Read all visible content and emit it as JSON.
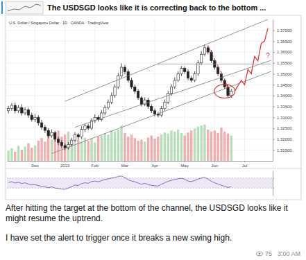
{
  "post": {
    "header": "The USDSGD looks like it is correcting back to the bottom ...",
    "caption": [
      "After hitting the target at the bottom of the channel, the USDSGD looks like it might resume the uptrend.",
      "I have set the alert to trigger once it breaks a new swing high."
    ],
    "views": 75,
    "time": "3:00 AM"
  },
  "chart_data": [
    {
      "type": "candlestick",
      "title": "U.S. Dollar / Singapore Dollar · 1D · OANDA · TradingView",
      "categories": [
        null,
        null,
        null,
        null,
        null,
        null,
        null,
        null,
        "Dec",
        null,
        null,
        null,
        null,
        null,
        null,
        null,
        null,
        "2023",
        null,
        null,
        null,
        null,
        null,
        null,
        null,
        null,
        "Feb",
        null,
        null,
        null,
        null,
        null,
        null,
        null,
        null,
        "Mar",
        null,
        null,
        null,
        null,
        null,
        null,
        null,
        null,
        "Apr",
        null,
        null,
        null,
        null,
        null,
        null,
        null,
        null,
        "May",
        null,
        null,
        null,
        null,
        null,
        null,
        null,
        null,
        "Jun",
        null,
        null,
        null,
        null,
        null,
        null,
        null,
        null,
        "Jul",
        null,
        null,
        null,
        null,
        null,
        null,
        null,
        null
      ],
      "series": [
        {
          "type": "candlestick",
          "open": [
            1.333,
            1.334,
            1.3355,
            1.333,
            1.3345,
            1.332,
            1.3335,
            1.331,
            1.329,
            1.33,
            1.3275,
            1.3255,
            1.324,
            1.3215,
            1.323,
            1.32,
            1.3185,
            1.317,
            1.316,
            1.3175,
            1.3195,
            1.322,
            1.321,
            1.3245,
            1.326,
            1.325,
            1.3285,
            1.33,
            1.329,
            1.332,
            1.3345,
            1.337,
            1.34,
            1.344,
            1.349,
            1.353,
            1.351,
            1.347,
            1.344,
            1.342,
            1.339,
            1.336,
            1.338,
            1.335,
            1.333,
            1.3315,
            1.331,
            1.334,
            1.337,
            1.341,
            1.344,
            1.347,
            1.35,
            1.3525,
            1.351,
            1.348,
            1.347,
            1.35,
            1.355,
            1.359,
            1.362,
            1.36,
            1.356,
            1.353,
            1.35,
            1.347,
            1.344,
            1.34,
            null,
            null,
            null,
            null,
            null,
            null,
            null,
            null,
            null,
            null,
            null,
            null
          ],
          "high": [
            1.3352,
            1.3366,
            1.3368,
            1.3356,
            1.336,
            1.3346,
            1.3344,
            1.3322,
            1.3315,
            1.331,
            1.3288,
            1.3266,
            1.325,
            1.3244,
            1.3238,
            1.3212,
            1.3196,
            1.318,
            1.3186,
            1.3206,
            1.3232,
            1.3228,
            1.3258,
            1.3272,
            1.327,
            1.3296,
            1.3314,
            1.331,
            1.3332,
            1.3356,
            1.3382,
            1.3414,
            1.3452,
            1.3504,
            1.3548,
            1.354,
            1.352,
            1.3482,
            1.345,
            1.343,
            1.3398,
            1.3392,
            1.339,
            1.336,
            1.334,
            1.3325,
            1.3352,
            1.3382,
            1.3422,
            1.3452,
            1.3484,
            1.3512,
            1.3536,
            1.3534,
            1.352,
            1.349,
            1.3512,
            1.3562,
            1.3604,
            1.3635,
            1.363,
            1.361,
            1.357,
            1.3538,
            1.351,
            1.3478,
            1.3448,
            1.343,
            null,
            null,
            null,
            null,
            null,
            null,
            null,
            null,
            null,
            null,
            null,
            null
          ],
          "low": [
            1.3318,
            1.333,
            1.3318,
            1.332,
            1.3308,
            1.331,
            1.3298,
            1.328,
            1.3278,
            1.3262,
            1.3244,
            1.3228,
            1.3204,
            1.3206,
            1.3188,
            1.3172,
            1.316,
            1.315,
            1.3152,
            1.3166,
            1.3184,
            1.3198,
            1.32,
            1.3234,
            1.324,
            1.3242,
            1.3274,
            1.328,
            1.3282,
            1.331,
            1.3336,
            1.336,
            1.339,
            1.343,
            1.348,
            1.3498,
            1.346,
            1.343,
            1.3408,
            1.338,
            1.335,
            1.3352,
            1.334,
            1.332,
            1.3304,
            1.33,
            1.3302,
            1.333,
            1.336,
            1.34,
            1.343,
            1.3462,
            1.349,
            1.35,
            1.347,
            1.346,
            1.3462,
            1.349,
            1.354,
            1.358,
            1.359,
            1.355,
            1.352,
            1.349,
            1.346,
            1.343,
            1.3392,
            1.339,
            null,
            null,
            null,
            null,
            null,
            null,
            null,
            null,
            null,
            null,
            null,
            null
          ],
          "close": [
            1.334,
            1.3355,
            1.333,
            1.3345,
            1.332,
            1.3335,
            1.331,
            1.329,
            1.33,
            1.3275,
            1.3255,
            1.324,
            1.3215,
            1.323,
            1.32,
            1.3185,
            1.317,
            1.316,
            1.3175,
            1.3195,
            1.322,
            1.321,
            1.3245,
            1.326,
            1.325,
            1.3285,
            1.33,
            1.329,
            1.332,
            1.3345,
            1.337,
            1.34,
            1.344,
            1.349,
            1.353,
            1.351,
            1.347,
            1.344,
            1.342,
            1.339,
            1.336,
            1.338,
            1.335,
            1.333,
            1.3315,
            1.331,
            1.334,
            1.337,
            1.341,
            1.344,
            1.347,
            1.35,
            1.3525,
            1.351,
            1.348,
            1.347,
            1.35,
            1.355,
            1.359,
            1.362,
            1.36,
            1.356,
            1.353,
            1.35,
            1.347,
            1.344,
            1.34,
            1.342,
            null,
            null,
            null,
            null,
            null,
            null,
            null,
            null,
            null,
            null,
            null,
            null
          ]
        },
        {
          "type": "bar",
          "axis": "y2",
          "values": [
            20,
            25,
            18,
            30,
            22,
            28,
            35,
            26,
            30,
            40,
            45,
            38,
            50,
            42,
            55,
            60,
            48,
            52,
            58,
            40,
            35,
            42,
            38,
            46,
            40,
            44,
            36,
            48,
            50,
            55,
            52,
            60,
            58,
            62,
            70,
            55,
            48,
            52,
            45,
            40,
            42,
            38,
            46,
            50,
            44,
            48,
            52,
            56,
            54,
            60,
            58,
            62,
            55,
            50,
            56,
            60,
            64,
            68,
            70,
            72,
            62,
            58,
            60,
            55,
            66,
            58,
            54,
            50,
            null,
            null,
            null,
            null,
            null,
            null,
            null,
            null,
            null,
            null,
            null,
            null
          ]
        }
      ],
      "ylim": [
        1.31,
        1.375
      ],
      "yticks": [
        {
          "value": 1.315,
          "label": "1.31500"
        },
        {
          "value": 1.32,
          "label": "1.32000"
        },
        {
          "value": 1.325,
          "label": "1.32500"
        },
        {
          "value": 1.33,
          "label": "1.33000"
        },
        {
          "value": 1.335,
          "label": "1.33500"
        },
        {
          "value": 1.34,
          "label": "1.34000"
        },
        {
          "value": 1.345,
          "label": "1.34500"
        },
        {
          "value": 1.35,
          "label": "1.35000"
        },
        {
          "value": 1.355,
          "label": "1.35500"
        },
        {
          "value": 1.36,
          "label": "1.36000"
        },
        {
          "value": 1.365,
          "label": "1.36500"
        },
        {
          "value": 1.37,
          "label": "1.37000"
        }
      ],
      "y2lim": [
        0,
        280
      ],
      "grid": true,
      "annotations": [
        {
          "type": "line",
          "x": [
            17,
            78
          ],
          "values": [
            1.3374,
            1.375
          ],
          "color": "#7a7a7a"
        },
        {
          "type": "line",
          "x": [
            13,
            79
          ],
          "values": [
            1.3134,
            1.3511
          ],
          "color": "#7a7a7a"
        },
        {
          "type": "line",
          "x": [
            20,
            79
          ],
          "values": [
            1.3254,
            1.3562
          ],
          "color": "#7a7a7a"
        },
        {
          "type": "line",
          "x": [
            45,
            79
          ],
          "values": [
            1.3545,
            1.3545
          ],
          "color": "#9e9e9e"
        },
        {
          "type": "arrow",
          "x": [
            60,
            66
          ],
          "values": [
            1.363,
            1.344
          ],
          "color": "#e53935",
          "line_style": "dashed"
        },
        {
          "type": "path",
          "x": [
            68,
            70,
            71,
            72,
            73,
            74,
            75,
            76,
            77,
            78
          ],
          "values": [
            1.342,
            1.347,
            1.345,
            1.352,
            1.35,
            1.358,
            1.356,
            1.364,
            1.365,
            1.371
          ],
          "color": "#e53935"
        },
        {
          "type": "text",
          "text": "?",
          "x": 78,
          "value": 1.357,
          "color": "#e53935"
        }
      ]
    },
    {
      "type": "line",
      "ylim": [
        0,
        100
      ],
      "yticks": [
        30,
        70
      ],
      "tick_labels": false,
      "grid": true,
      "series": [
        {
          "color": "#7e57c2",
          "values": [
            52,
            55,
            50,
            53,
            48,
            51,
            46,
            42,
            44,
            40,
            37,
            35,
            31,
            35,
            30,
            28,
            26,
            25,
            30,
            36,
            42,
            40,
            48,
            51,
            49,
            56,
            58,
            55,
            60,
            64,
            67,
            70,
            73,
            76,
            78,
            72,
            63,
            58,
            55,
            50,
            45,
            49,
            44,
            41,
            39,
            38,
            45,
            51,
            57,
            61,
            64,
            67,
            69,
            65,
            58,
            56,
            60,
            66,
            70,
            72,
            66,
            57,
            51,
            46,
            41,
            37,
            32,
            36,
            null,
            null,
            null,
            null,
            null,
            null,
            null,
            null,
            null,
            null,
            null,
            null
          ]
        }
      ]
    }
  ]
}
